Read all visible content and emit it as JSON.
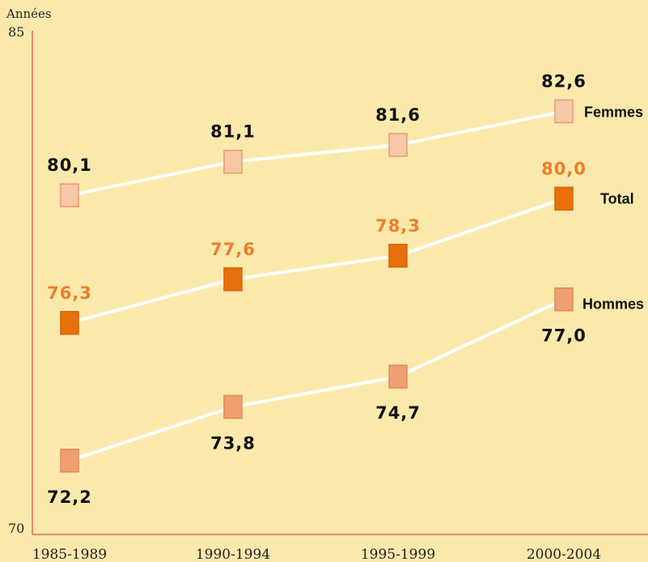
{
  "chart_data": {
    "type": "line",
    "ylabel": "Années",
    "ylim": [
      70,
      85
    ],
    "y_ticks": [
      "85",
      "70"
    ],
    "categories": [
      "1985-1989",
      "1990-1994",
      "1995-1999",
      "2000-2004"
    ],
    "series": [
      {
        "name": "Femmes",
        "values": [
          80.1,
          81.1,
          81.6,
          82.6
        ],
        "labels": [
          "80,1",
          "81,1",
          "81,6",
          "82,6"
        ],
        "marker_color": "#f7c8a8",
        "marker_stroke": "#e99a70",
        "label_color": "#111111"
      },
      {
        "name": "Total",
        "values": [
          76.3,
          77.6,
          78.3,
          80.0
        ],
        "labels": [
          "76,3",
          "77,6",
          "78,3",
          "80,0"
        ],
        "marker_color": "#e8700a",
        "marker_stroke": "#d9620a",
        "label_color": "#ef7d2a"
      },
      {
        "name": "Hommes",
        "values": [
          72.2,
          73.8,
          74.7,
          77.0
        ],
        "labels": [
          "72,2",
          "73,8",
          "74,7",
          "77,0"
        ],
        "marker_color": "#f0a070",
        "marker_stroke": "#e08a58",
        "label_color": "#111111"
      }
    ],
    "grid": false,
    "colors": {
      "background": "#fbe9ac",
      "axis": "#e08a70",
      "line": "#ffffff"
    }
  }
}
